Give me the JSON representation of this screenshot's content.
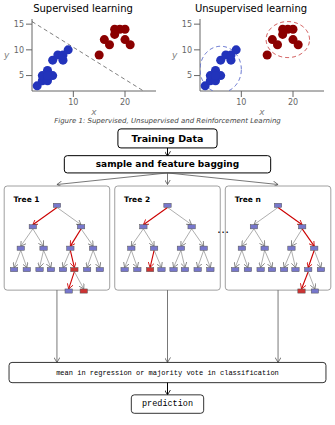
{
  "chart_data": [
    {
      "type": "scatter",
      "title": "Supervised learning",
      "x_label": "x",
      "y_label": "y",
      "xlim": [
        2,
        26
      ],
      "ylim": [
        2,
        16
      ],
      "xticks": [
        10,
        20
      ],
      "yticks": [
        5,
        10,
        15
      ],
      "series": [
        {
          "color": "#2233bb",
          "x": [
            3,
            4,
            4,
            5,
            5,
            6,
            6,
            7,
            8,
            8,
            9,
            5
          ],
          "y": [
            3,
            4,
            5,
            4,
            6,
            5,
            8,
            9,
            8,
            9,
            10,
            5
          ]
        },
        {
          "color": "#8b0000",
          "x": [
            15,
            16,
            17,
            18,
            19,
            20,
            21,
            20,
            18
          ],
          "y": [
            9,
            12,
            11,
            13,
            14,
            12,
            11,
            14,
            14
          ]
        }
      ],
      "boundary": {
        "x": [
          2,
          26
        ],
        "y": [
          15.5,
          0.5
        ],
        "color": "#000000",
        "line_style": "dashed"
      }
    },
    {
      "type": "scatter",
      "title": "Unsupervised learning",
      "x_label": "x",
      "y_label": "y",
      "xlim": [
        2,
        26
      ],
      "ylim": [
        2,
        16
      ],
      "xticks": [
        10,
        20
      ],
      "yticks": [
        5,
        10,
        15
      ],
      "series": [
        {
          "color": "#2233bb",
          "x": [
            3,
            4,
            4,
            5,
            5,
            6,
            6,
            7,
            8,
            8,
            9,
            5
          ],
          "y": [
            3,
            4,
            5,
            4,
            6,
            5,
            8,
            9,
            8,
            9,
            10,
            5
          ]
        },
        {
          "color": "#8b0000",
          "x": [
            15,
            16,
            17,
            18,
            19,
            20,
            21,
            20,
            18
          ],
          "y": [
            9,
            12,
            11,
            13,
            14,
            12,
            11,
            14,
            14
          ]
        }
      ],
      "clusters": [
        {
          "cx": 6.0,
          "cy": 6.2,
          "rx": 4.0,
          "ry": 4.5,
          "color": "#5566cc",
          "line_style": "dashed"
        },
        {
          "cx": 19.0,
          "cy": 12.0,
          "rx": 4.2,
          "ry": 3.5,
          "color": "#cc4444",
          "line_style": "dashed"
        }
      ]
    },
    {
      "type": "diagram",
      "annotations": [
        "Figure 1: Supervised, Unsupervised and Reinforcement Learning",
        "Training Data",
        "sample and feature bagging",
        "Tree 1",
        "Tree 2",
        "Tree n",
        "⋯",
        "mean in regression or majority vote in classification",
        "prediction"
      ]
    }
  ]
}
